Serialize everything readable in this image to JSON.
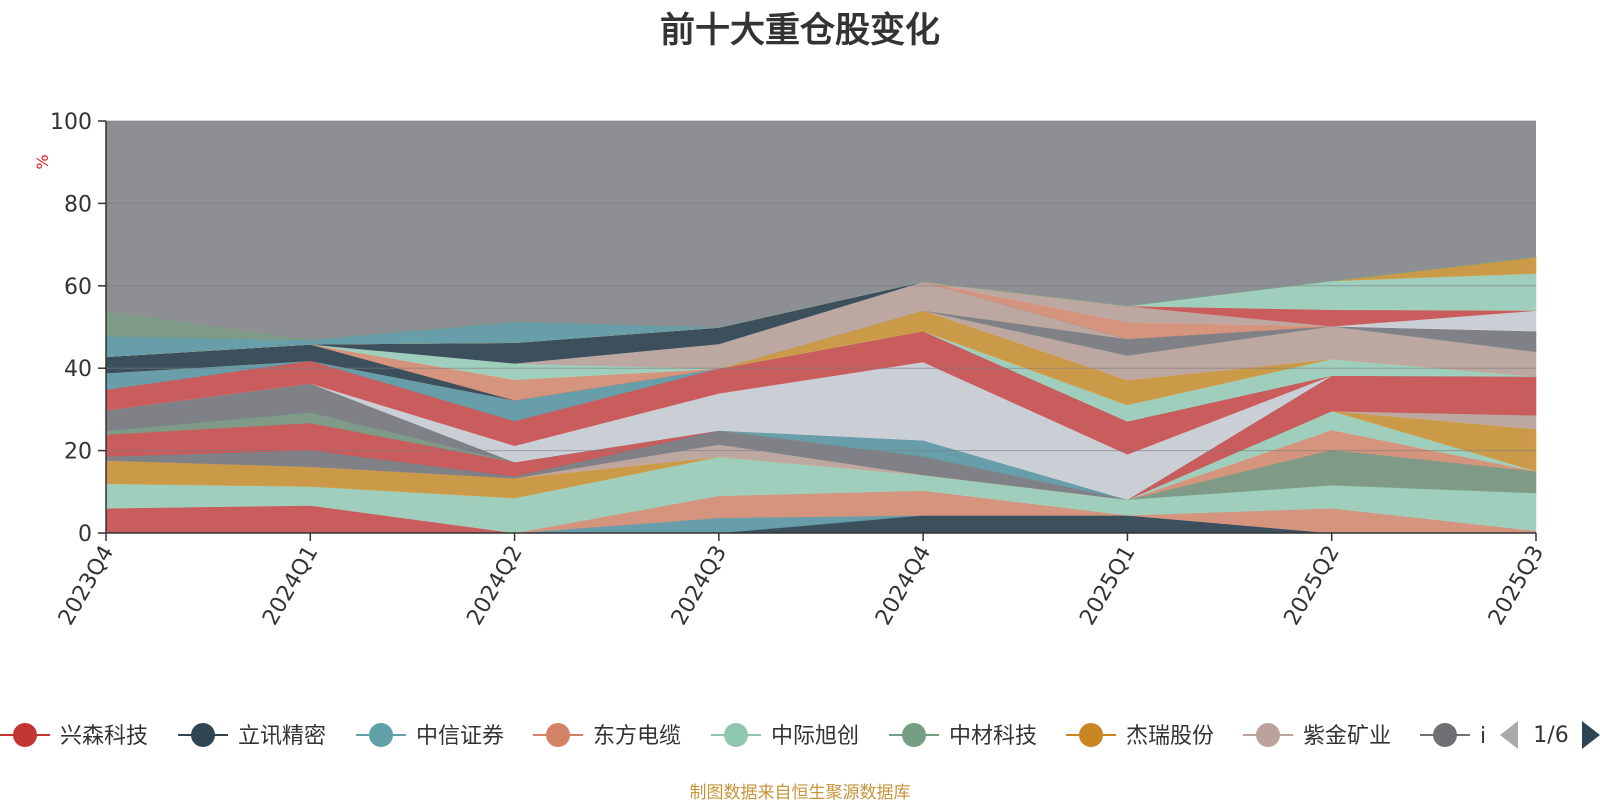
{
  "title": "前十大重仓股变化",
  "footer": "制图数据来自恒生聚源数据库",
  "legend_page": "1/6",
  "legend_truncated_label": "i",
  "colors": {
    "others": "#8e8f95",
    "axis": "#333333",
    "grid": "#7c7c80",
    "ylabel": "#e02020",
    "footer": "#c8943a",
    "arrow_active": "#2e4453",
    "arrow_inactive": "#aaaaaa"
  },
  "chart_data": {
    "type": "area",
    "stacked": true,
    "title": "前十大重仓股变化",
    "ylabel": "%",
    "ylim": [
      0,
      100
    ],
    "yticks": [
      0,
      20,
      40,
      60,
      80,
      100
    ],
    "categories": [
      "2023Q4",
      "2024Q1",
      "2024Q2",
      "2024Q3",
      "2024Q4",
      "2025Q1",
      "2025Q2",
      "2025Q3"
    ],
    "others_fill": "remainder to 100 shown in gray",
    "series": [
      {
        "name": "",
        "color": "#2e4453",
        "values": [
          0,
          0,
          0,
          0,
          4.3,
          4.3,
          0,
          0
        ]
      },
      {
        "name": "",
        "color": "#62a0ae",
        "values": [
          0,
          0,
          0,
          3.7,
          0,
          0,
          0,
          0
        ]
      },
      {
        "name": "",
        "color": "#e0957a",
        "values": [
          0,
          0,
          0,
          5.3,
          6.0,
          0,
          6.0,
          0.5
        ]
      },
      {
        "name": "",
        "color": "#d45454",
        "values": [
          6.0,
          6.7,
          0,
          0,
          0,
          0,
          0,
          0
        ]
      },
      {
        "name": "",
        "color": "#a3d9c4",
        "values": [
          6.0,
          4.6,
          8.5,
          9.5,
          3.8,
          3.8,
          5.6,
          9.2
        ]
      },
      {
        "name": "",
        "color": "#7c9d86",
        "values": [
          0,
          0,
          0,
          0,
          0,
          0,
          8.6,
          5.3
        ]
      },
      {
        "name": "",
        "color": "#e0957a",
        "values": [
          0,
          0,
          0,
          0,
          0,
          0,
          4.8,
          0
        ]
      },
      {
        "name": "",
        "color": "#a3d9c4",
        "values": [
          0,
          0,
          0,
          0,
          0,
          0,
          4.6,
          0
        ]
      },
      {
        "name": "",
        "color": "#d69c3c",
        "values": [
          5.6,
          4.8,
          4.8,
          0,
          0,
          0,
          0,
          10.2
        ]
      },
      {
        "name": "",
        "color": "#c6aba3",
        "values": [
          0,
          0,
          0,
          3.0,
          0,
          0,
          0,
          3.4
        ]
      },
      {
        "name": "",
        "color": "#7d7f85",
        "values": [
          1.0,
          4.0,
          0.5,
          3.4,
          4.5,
          0,
          0,
          0
        ]
      },
      {
        "name": "",
        "color": "#d45454",
        "values": [
          5.3,
          6.6,
          3.4,
          0,
          0,
          0,
          8.6,
          9.4
        ]
      },
      {
        "name": "",
        "color": "#7c9d86",
        "values": [
          0.9,
          2.6,
          0,
          0,
          0,
          0,
          0,
          0
        ]
      },
      {
        "name": "",
        "color": "#62a0ae",
        "values": [
          0,
          0,
          0,
          0,
          3.9,
          0,
          0,
          0
        ]
      },
      {
        "name": "",
        "color": "#7d7f85",
        "values": [
          5.0,
          7.0,
          0,
          0,
          0,
          0,
          0,
          0
        ]
      },
      {
        "name": "",
        "color": "#d5d9e0",
        "values": [
          0,
          0,
          4.0,
          9.0,
          19.0,
          11.0,
          0,
          0
        ]
      },
      {
        "name": "",
        "color": "#d45454",
        "values": [
          5.0,
          5.5,
          6.0,
          6.0,
          7.5,
          8.0,
          0,
          0
        ]
      },
      {
        "name": "",
        "color": "#62a0ae",
        "values": [
          4.0,
          0,
          5.0,
          0,
          0,
          0,
          0,
          0
        ]
      },
      {
        "name": "",
        "color": "#a3d9c4",
        "values": [
          0,
          0,
          0,
          0,
          0,
          4.0,
          4.0,
          0
        ]
      },
      {
        "name": "",
        "color": "#d69c3c",
        "values": [
          0,
          0,
          0,
          0,
          5.0,
          6.0,
          0,
          0
        ]
      },
      {
        "name": "",
        "color": "#c6aba3",
        "values": [
          0,
          0,
          0,
          0,
          0,
          6.0,
          8.0,
          6.0
        ]
      },
      {
        "name": "",
        "color": "#2e4453",
        "values": [
          4.0,
          4.0,
          0,
          0,
          0,
          0,
          0,
          0
        ]
      },
      {
        "name": "",
        "color": "#e0957a",
        "values": [
          0,
          0,
          5.0,
          0,
          0,
          0,
          0,
          0
        ]
      },
      {
        "name": "",
        "color": "#a3d9c4",
        "values": [
          0,
          0,
          4.0,
          0,
          0,
          0,
          0,
          0
        ]
      },
      {
        "name": "",
        "color": "#7d7f85",
        "values": [
          0,
          0,
          0,
          0,
          0,
          4.0,
          0,
          5.0
        ]
      },
      {
        "name": "",
        "color": "#c6aba3",
        "values": [
          0,
          0,
          0,
          6.0,
          7.0,
          0,
          0,
          0
        ]
      },
      {
        "name": "",
        "color": "#d5d9e0",
        "values": [
          0,
          0,
          0,
          0,
          0,
          0,
          0,
          5.0
        ]
      },
      {
        "name": "",
        "color": "#2e4453",
        "values": [
          0,
          0,
          5.0,
          4.0,
          0,
          0,
          0,
          0
        ]
      },
      {
        "name": "",
        "color": "#e0957a",
        "values": [
          0,
          0,
          0,
          0,
          0,
          4.0,
          0,
          0
        ]
      },
      {
        "name": "",
        "color": "#c6aba3",
        "values": [
          0,
          0,
          0,
          0,
          0,
          4.0,
          0,
          0
        ]
      },
      {
        "name": "",
        "color": "#d45454",
        "values": [
          0,
          0,
          0,
          0,
          0,
          0,
          4.0,
          0
        ]
      },
      {
        "name": "",
        "color": "#a3d9c4",
        "values": [
          0,
          0,
          0,
          0,
          0,
          0,
          7.0,
          9.0
        ]
      },
      {
        "name": "",
        "color": "#d69c3c",
        "values": [
          0,
          0,
          0,
          0,
          0,
          0,
          0,
          4.0
        ]
      },
      {
        "name": "",
        "color": "#62a0ae",
        "values": [
          5.0,
          1.0,
          5.0,
          0,
          0,
          0,
          0,
          0
        ]
      },
      {
        "name": "",
        "color": "#7c9d86",
        "values": [
          6.0,
          0,
          0,
          0,
          0,
          0,
          0,
          0
        ]
      }
    ]
  },
  "legend": [
    {
      "label": "兴森科技",
      "color": "#c23531"
    },
    {
      "label": "立讯精密",
      "color": "#2f4554"
    },
    {
      "label": "中信证券",
      "color": "#61a0a8"
    },
    {
      "label": "东方电缆",
      "color": "#d48265"
    },
    {
      "label": "中际旭创",
      "color": "#91c7ae"
    },
    {
      "label": "中材科技",
      "color": "#749f83"
    },
    {
      "label": "杰瑞股份",
      "color": "#ca8622"
    },
    {
      "label": "紫金矿业",
      "color": "#bda29a"
    },
    {
      "label": "i",
      "color": "#6e7074"
    }
  ]
}
